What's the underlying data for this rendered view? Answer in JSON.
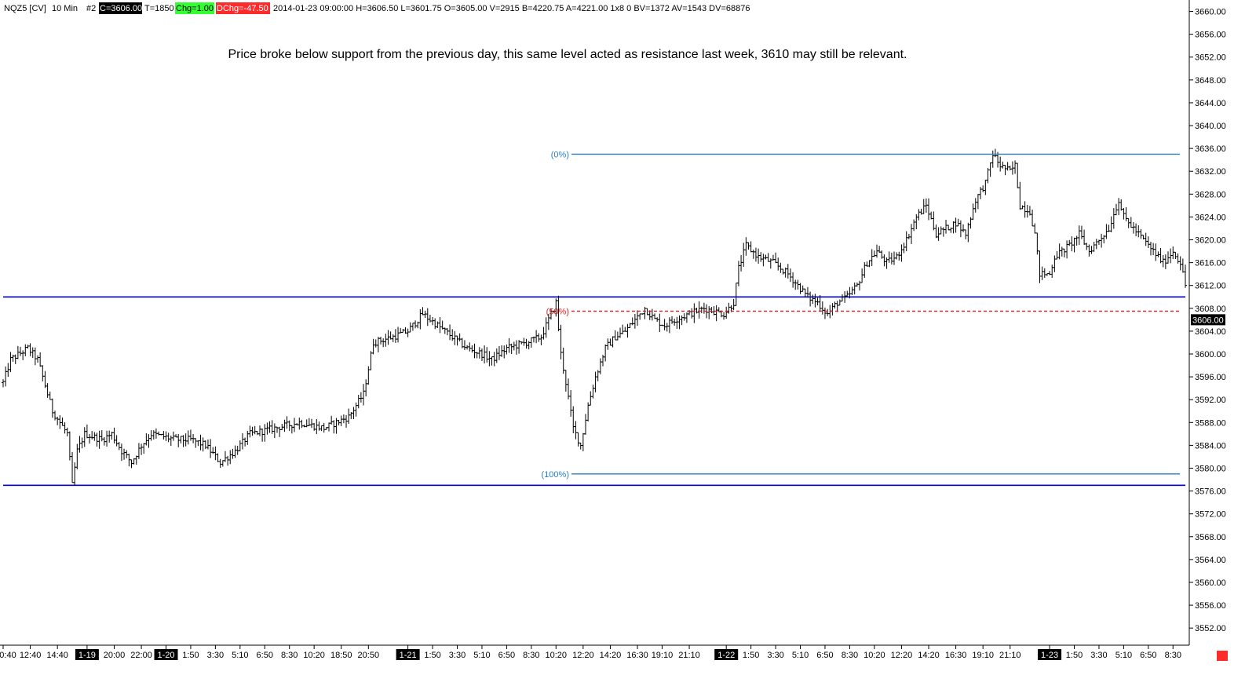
{
  "header": {
    "symbol": "NQZ5 [CV]",
    "interval": "10 Min",
    "chart_no": "#2",
    "close": "C=3606.00",
    "ticks": "T=1850",
    "change": "Chg=1.00",
    "day_change": "DChg=-47.50",
    "rest": "2014-01-23 09:00:00 H=3606.50 L=3601.75 O=3605.00 V=2915 B=4220.75 A=4221.00 1x8 0 BV=1372 AV=1543 DV=68876",
    "colors": {
      "change_bg": "#33ff33",
      "day_change_bg": "#ff2a2a",
      "close_bg": "#000000"
    }
  },
  "annotation": {
    "text": "Price broke below support from the previous day, this same level acted as resistance last week, 3610 may still be relevant."
  },
  "chart_data": {
    "type": "candlestick",
    "ylim": [
      3549,
      3662
    ],
    "y_ticks": [
      "3660.00",
      "3656.00",
      "3652.00",
      "3648.00",
      "3644.00",
      "3640.00",
      "3636.00",
      "3632.00",
      "3628.00",
      "3624.00",
      "3620.00",
      "3616.00",
      "3612.00",
      "3608.00",
      "3604.00",
      "3600.00",
      "3596.00",
      "3592.00",
      "3588.00",
      "3584.00",
      "3580.00",
      "3576.00",
      "3572.00",
      "3568.00",
      "3564.00",
      "3560.00",
      "3556.00",
      "3552.00"
    ],
    "x_ticks": [
      {
        "label": "0:40",
        "idx": 0,
        "date": false
      },
      {
        "label": "12:40",
        "idx": 11,
        "date": false
      },
      {
        "label": "14:40",
        "idx": 22,
        "date": false
      },
      {
        "label": "1-19",
        "idx": 34,
        "date": true
      },
      {
        "label": "20:00",
        "idx": 45,
        "date": false
      },
      {
        "label": "22:00",
        "idx": 56,
        "date": false
      },
      {
        "label": "1-20",
        "idx": 66,
        "date": true
      },
      {
        "label": "1:50",
        "idx": 76,
        "date": false
      },
      {
        "label": "3:30",
        "idx": 86,
        "date": false
      },
      {
        "label": "5:10",
        "idx": 96,
        "date": false
      },
      {
        "label": "6:50",
        "idx": 106,
        "date": false
      },
      {
        "label": "8:30",
        "idx": 116,
        "date": false
      },
      {
        "label": "10:20",
        "idx": 126,
        "date": false
      },
      {
        "label": "18:50",
        "idx": 137,
        "date": false
      },
      {
        "label": "20:50",
        "idx": 148,
        "date": false
      },
      {
        "label": "1-21",
        "idx": 164,
        "date": true
      },
      {
        "label": "1:50",
        "idx": 174,
        "date": false
      },
      {
        "label": "3:30",
        "idx": 184,
        "date": false
      },
      {
        "label": "5:10",
        "idx": 194,
        "date": false
      },
      {
        "label": "6:50",
        "idx": 204,
        "date": false
      },
      {
        "label": "8:30",
        "idx": 214,
        "date": false
      },
      {
        "label": "10:20",
        "idx": 224,
        "date": false
      },
      {
        "label": "12:20",
        "idx": 235,
        "date": false
      },
      {
        "label": "14:20",
        "idx": 246,
        "date": false
      },
      {
        "label": "16:30",
        "idx": 257,
        "date": false
      },
      {
        "label": "19:10",
        "idx": 267,
        "date": false
      },
      {
        "label": "21:10",
        "idx": 278,
        "date": false
      },
      {
        "label": "1-22",
        "idx": 293,
        "date": true
      },
      {
        "label": "1:50",
        "idx": 303,
        "date": false
      },
      {
        "label": "3:30",
        "idx": 313,
        "date": false
      },
      {
        "label": "5:10",
        "idx": 323,
        "date": false
      },
      {
        "label": "6:50",
        "idx": 333,
        "date": false
      },
      {
        "label": "8:30",
        "idx": 343,
        "date": false
      },
      {
        "label": "10:20",
        "idx": 353,
        "date": false
      },
      {
        "label": "12:20",
        "idx": 364,
        "date": false
      },
      {
        "label": "14:20",
        "idx": 375,
        "date": false
      },
      {
        "label": "16:30",
        "idx": 386,
        "date": false
      },
      {
        "label": "19:10",
        "idx": 397,
        "date": false
      },
      {
        "label": "21:10",
        "idx": 408,
        "date": false
      },
      {
        "label": "1-23",
        "idx": 424,
        "date": true
      },
      {
        "label": "1:50",
        "idx": 434,
        "date": false
      },
      {
        "label": "3:30",
        "idx": 444,
        "date": false
      },
      {
        "label": "5:10",
        "idx": 454,
        "date": false
      },
      {
        "label": "6:50",
        "idx": 464,
        "date": false
      },
      {
        "label": "8:30",
        "idx": 474,
        "date": false
      }
    ],
    "bar_count": 480,
    "path_anchors": [
      [
        0,
        3595
      ],
      [
        3,
        3599
      ],
      [
        10,
        3601
      ],
      [
        14,
        3599
      ],
      [
        20,
        3590
      ],
      [
        26,
        3586
      ],
      [
        28,
        3577
      ],
      [
        30,
        3583
      ],
      [
        33,
        3586
      ],
      [
        40,
        3585
      ],
      [
        44,
        3586
      ],
      [
        48,
        3583
      ],
      [
        52,
        3581
      ],
      [
        56,
        3584
      ],
      [
        60,
        3586
      ],
      [
        70,
        3585
      ],
      [
        76,
        3585
      ],
      [
        82,
        3584
      ],
      [
        88,
        3581
      ],
      [
        94,
        3583
      ],
      [
        100,
        3586
      ],
      [
        110,
        3587
      ],
      [
        120,
        3588
      ],
      [
        130,
        3587
      ],
      [
        140,
        3589
      ],
      [
        146,
        3593
      ],
      [
        150,
        3602
      ],
      [
        158,
        3603
      ],
      [
        164,
        3604
      ],
      [
        170,
        3607
      ],
      [
        176,
        3605
      ],
      [
        182,
        3603
      ],
      [
        188,
        3601
      ],
      [
        194,
        3600
      ],
      [
        198,
        3599
      ],
      [
        204,
        3601
      ],
      [
        212,
        3602
      ],
      [
        218,
        3603
      ],
      [
        222,
        3607
      ],
      [
        224,
        3609
      ],
      [
        226,
        3600
      ],
      [
        228,
        3595
      ],
      [
        231,
        3587
      ],
      [
        234,
        3584
      ],
      [
        237,
        3591
      ],
      [
        240,
        3596
      ],
      [
        244,
        3601
      ],
      [
        248,
        3603
      ],
      [
        252,
        3604
      ],
      [
        256,
        3606
      ],
      [
        260,
        3608
      ],
      [
        264,
        3606
      ],
      [
        268,
        3605
      ],
      [
        272,
        3606
      ],
      [
        278,
        3607
      ],
      [
        284,
        3608
      ],
      [
        292,
        3607
      ],
      [
        296,
        3609
      ],
      [
        298,
        3615
      ],
      [
        301,
        3619
      ],
      [
        306,
        3617
      ],
      [
        312,
        3616
      ],
      [
        318,
        3614
      ],
      [
        322,
        3612
      ],
      [
        326,
        3610
      ],
      [
        330,
        3609
      ],
      [
        334,
        3607
      ],
      [
        338,
        3609
      ],
      [
        342,
        3610
      ],
      [
        346,
        3612
      ],
      [
        350,
        3616
      ],
      [
        354,
        3618
      ],
      [
        358,
        3616
      ],
      [
        362,
        3617
      ],
      [
        366,
        3620
      ],
      [
        370,
        3624
      ],
      [
        374,
        3626
      ],
      [
        378,
        3621
      ],
      [
        382,
        3622
      ],
      [
        386,
        3623
      ],
      [
        390,
        3621
      ],
      [
        394,
        3627
      ],
      [
        398,
        3630
      ],
      [
        401,
        3635
      ],
      [
        404,
        3633
      ],
      [
        408,
        3632
      ],
      [
        410,
        3633
      ],
      [
        412,
        3626
      ],
      [
        416,
        3625
      ],
      [
        418,
        3621
      ],
      [
        420,
        3614
      ],
      [
        424,
        3614
      ],
      [
        426,
        3617
      ],
      [
        432,
        3619
      ],
      [
        436,
        3621
      ],
      [
        440,
        3618
      ],
      [
        444,
        3620
      ],
      [
        448,
        3622
      ],
      [
        452,
        3627
      ],
      [
        454,
        3624
      ],
      [
        458,
        3622
      ],
      [
        462,
        3620
      ],
      [
        466,
        3618
      ],
      [
        470,
        3616
      ],
      [
        474,
        3618
      ],
      [
        477,
        3616
      ],
      [
        479,
        3612
      ],
      [
        480,
        3606
      ]
    ],
    "last_price": "3606.00",
    "support_resistance": [
      3610,
      3577
    ],
    "fib_retracement": {
      "high": 3635,
      "low": 3579,
      "mid": 3607.5,
      "labels": {
        "high": "(0%)",
        "mid": "(50%)",
        "low": "(100%)"
      }
    },
    "colors": {
      "bars": "#000000",
      "level_lines": "#0000ee",
      "fib_lines": "#2a7fc0",
      "fib_mid": "#e02020",
      "fib_label": "#2a7fc0",
      "fib_mid_label": "#e02020",
      "corner_marker": "#ff2a2a"
    }
  }
}
